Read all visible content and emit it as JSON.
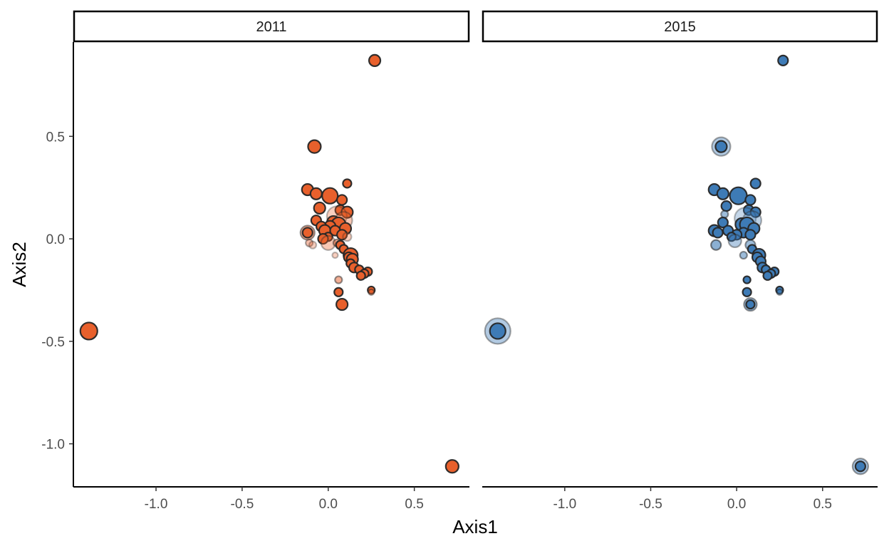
{
  "chart_data": {
    "type": "scatter",
    "xlabel": "Axis1",
    "ylabel": "Axis2",
    "xlim": [
      -1.48,
      0.82
    ],
    "ylim": [
      -1.21,
      0.96
    ],
    "x_ticks": [
      -1.0,
      -0.5,
      0.0,
      0.5
    ],
    "y_ticks": [
      -1.0,
      -0.5,
      0.0,
      0.5
    ],
    "x_tick_labels": [
      "-1.0",
      "-0.5",
      "0.0",
      "0.5"
    ],
    "y_tick_labels": [
      "-1.0",
      "-0.5",
      "0.0",
      "0.5"
    ],
    "grid": false,
    "legend": "none",
    "facets": [
      {
        "label": "2011",
        "fill_color": "#e8602c",
        "points": [
          {
            "x": 0.27,
            "y": 0.87,
            "size": 8,
            "alpha": 1.0
          },
          {
            "x": -0.08,
            "y": 0.45,
            "size": 9,
            "alpha": 1.0
          },
          {
            "x": 0.11,
            "y": 0.27,
            "size": 6,
            "alpha": 1.0
          },
          {
            "x": -0.12,
            "y": 0.24,
            "size": 8,
            "alpha": 1.0
          },
          {
            "x": -0.07,
            "y": 0.22,
            "size": 8,
            "alpha": 1.0
          },
          {
            "x": 0.01,
            "y": 0.21,
            "size": 11,
            "alpha": 1.0
          },
          {
            "x": 0.08,
            "y": 0.19,
            "size": 7,
            "alpha": 1.0
          },
          {
            "x": -0.05,
            "y": 0.15,
            "size": 8,
            "alpha": 1.0
          },
          {
            "x": 0.07,
            "y": 0.14,
            "size": 7,
            "alpha": 1.0
          },
          {
            "x": 0.11,
            "y": 0.13,
            "size": 8,
            "alpha": 1.0
          },
          {
            "x": 0.05,
            "y": 0.11,
            "size": 14,
            "alpha": 0.3
          },
          {
            "x": 0.09,
            "y": 0.09,
            "size": 12,
            "alpha": 0.35
          },
          {
            "x": -0.07,
            "y": 0.09,
            "size": 7,
            "alpha": 1.0
          },
          {
            "x": 0.03,
            "y": 0.08,
            "size": 9,
            "alpha": 1.0
          },
          {
            "x": 0.06,
            "y": 0.07,
            "size": 10,
            "alpha": 1.0
          },
          {
            "x": 0.01,
            "y": 0.06,
            "size": 8,
            "alpha": 1.0
          },
          {
            "x": -0.04,
            "y": 0.06,
            "size": 7,
            "alpha": 1.0
          },
          {
            "x": 0.1,
            "y": 0.05,
            "size": 8,
            "alpha": 1.0
          },
          {
            "x": -0.02,
            "y": 0.04,
            "size": 8,
            "alpha": 1.0
          },
          {
            "x": 0.04,
            "y": 0.04,
            "size": 7,
            "alpha": 1.0
          },
          {
            "x": -0.12,
            "y": 0.03,
            "size": 10,
            "alpha": 0.5
          },
          {
            "x": -0.12,
            "y": 0.03,
            "size": 7,
            "alpha": 1.0
          },
          {
            "x": 0.08,
            "y": 0.02,
            "size": 7,
            "alpha": 1.0
          },
          {
            "x": 0.0,
            "y": 0.01,
            "size": 6,
            "alpha": 1.0
          },
          {
            "x": 0.11,
            "y": 0.01,
            "size": 6,
            "alpha": 0.3
          },
          {
            "x": -0.03,
            "y": 0.0,
            "size": 7,
            "alpha": 1.0
          },
          {
            "x": 0.0,
            "y": -0.02,
            "size": 10,
            "alpha": 0.35
          },
          {
            "x": -0.11,
            "y": -0.02,
            "size": 5,
            "alpha": 0.4
          },
          {
            "x": 0.05,
            "y": -0.02,
            "size": 5,
            "alpha": 0.5
          },
          {
            "x": -0.09,
            "y": -0.03,
            "size": 5,
            "alpha": 0.3
          },
          {
            "x": 0.07,
            "y": -0.03,
            "size": 6,
            "alpha": 1.0
          },
          {
            "x": 0.09,
            "y": -0.05,
            "size": 6,
            "alpha": 1.0
          },
          {
            "x": 0.04,
            "y": -0.08,
            "size": 4,
            "alpha": 0.3
          },
          {
            "x": 0.13,
            "y": -0.08,
            "size": 10,
            "alpha": 1.0
          },
          {
            "x": 0.12,
            "y": -0.09,
            "size": 7,
            "alpha": 1.0
          },
          {
            "x": 0.14,
            "y": -0.1,
            "size": 8,
            "alpha": 1.0
          },
          {
            "x": 0.13,
            "y": -0.12,
            "size": 6,
            "alpha": 1.0
          },
          {
            "x": 0.15,
            "y": -0.14,
            "size": 7,
            "alpha": 1.0
          },
          {
            "x": 0.18,
            "y": -0.15,
            "size": 6,
            "alpha": 1.0
          },
          {
            "x": 0.23,
            "y": -0.16,
            "size": 6,
            "alpha": 1.0
          },
          {
            "x": 0.21,
            "y": -0.17,
            "size": 6,
            "alpha": 1.0
          },
          {
            "x": 0.19,
            "y": -0.18,
            "size": 6,
            "alpha": 1.0
          },
          {
            "x": 0.06,
            "y": -0.2,
            "size": 5,
            "alpha": 0.5
          },
          {
            "x": 0.25,
            "y": -0.25,
            "size": 5,
            "alpha": 1.0
          },
          {
            "x": 0.06,
            "y": -0.26,
            "size": 6,
            "alpha": 1.0
          },
          {
            "x": 0.25,
            "y": -0.26,
            "size": 4,
            "alpha": 0.5
          },
          {
            "x": 0.08,
            "y": -0.32,
            "size": 8,
            "alpha": 1.0
          },
          {
            "x": -1.39,
            "y": -0.45,
            "size": 12,
            "alpha": 1.0
          },
          {
            "x": 0.72,
            "y": -1.11,
            "size": 9,
            "alpha": 1.0
          }
        ]
      },
      {
        "label": "2015",
        "fill_color": "#3e7bb6",
        "points": [
          {
            "x": 0.27,
            "y": 0.87,
            "size": 7,
            "alpha": 1.0
          },
          {
            "x": -0.09,
            "y": 0.45,
            "size": 13,
            "alpha": 0.4
          },
          {
            "x": -0.09,
            "y": 0.45,
            "size": 8,
            "alpha": 1.0
          },
          {
            "x": 0.11,
            "y": 0.27,
            "size": 7,
            "alpha": 1.0
          },
          {
            "x": -0.13,
            "y": 0.24,
            "size": 8,
            "alpha": 1.0
          },
          {
            "x": -0.08,
            "y": 0.22,
            "size": 8,
            "alpha": 1.0
          },
          {
            "x": 0.01,
            "y": 0.21,
            "size": 12,
            "alpha": 1.0
          },
          {
            "x": 0.08,
            "y": 0.19,
            "size": 7,
            "alpha": 1.0
          },
          {
            "x": -0.06,
            "y": 0.16,
            "size": 7,
            "alpha": 1.0
          },
          {
            "x": 0.07,
            "y": 0.14,
            "size": 7,
            "alpha": 1.0
          },
          {
            "x": 0.11,
            "y": 0.13,
            "size": 7,
            "alpha": 1.0
          },
          {
            "x": -0.07,
            "y": 0.12,
            "size": 5,
            "alpha": 0.5
          },
          {
            "x": 0.05,
            "y": 0.1,
            "size": 15,
            "alpha": 0.3
          },
          {
            "x": 0.09,
            "y": 0.09,
            "size": 13,
            "alpha": 0.35
          },
          {
            "x": -0.08,
            "y": 0.08,
            "size": 7,
            "alpha": 1.0
          },
          {
            "x": 0.03,
            "y": 0.07,
            "size": 9,
            "alpha": 1.0
          },
          {
            "x": 0.06,
            "y": 0.07,
            "size": 10,
            "alpha": 1.0
          },
          {
            "x": 0.1,
            "y": 0.05,
            "size": 8,
            "alpha": 1.0
          },
          {
            "x": -0.05,
            "y": 0.04,
            "size": 7,
            "alpha": 1.0
          },
          {
            "x": 0.04,
            "y": 0.03,
            "size": 7,
            "alpha": 1.0
          },
          {
            "x": -0.13,
            "y": 0.04,
            "size": 8,
            "alpha": 1.0
          },
          {
            "x": -0.11,
            "y": 0.03,
            "size": 7,
            "alpha": 1.0
          },
          {
            "x": 0.08,
            "y": 0.02,
            "size": 7,
            "alpha": 1.0
          },
          {
            "x": 0.0,
            "y": 0.02,
            "size": 7,
            "alpha": 1.0
          },
          {
            "x": -0.03,
            "y": 0.01,
            "size": 6,
            "alpha": 1.0
          },
          {
            "x": -0.01,
            "y": -0.01,
            "size": 9,
            "alpha": 0.4
          },
          {
            "x": -0.12,
            "y": -0.03,
            "size": 7,
            "alpha": 0.6
          },
          {
            "x": 0.08,
            "y": -0.03,
            "size": 7,
            "alpha": 0.5
          },
          {
            "x": 0.09,
            "y": -0.05,
            "size": 6,
            "alpha": 1.0
          },
          {
            "x": 0.04,
            "y": -0.08,
            "size": 5,
            "alpha": 0.5
          },
          {
            "x": 0.13,
            "y": -0.08,
            "size": 9,
            "alpha": 1.0
          },
          {
            "x": 0.12,
            "y": -0.09,
            "size": 7,
            "alpha": 1.0
          },
          {
            "x": 0.14,
            "y": -0.11,
            "size": 7,
            "alpha": 1.0
          },
          {
            "x": 0.15,
            "y": -0.14,
            "size": 7,
            "alpha": 1.0
          },
          {
            "x": 0.17,
            "y": -0.15,
            "size": 6,
            "alpha": 1.0
          },
          {
            "x": 0.22,
            "y": -0.16,
            "size": 6,
            "alpha": 1.0
          },
          {
            "x": 0.2,
            "y": -0.17,
            "size": 6,
            "alpha": 1.0
          },
          {
            "x": 0.18,
            "y": -0.18,
            "size": 6,
            "alpha": 1.0
          },
          {
            "x": 0.06,
            "y": -0.2,
            "size": 5,
            "alpha": 1.0
          },
          {
            "x": 0.25,
            "y": -0.25,
            "size": 5,
            "alpha": 1.0
          },
          {
            "x": 0.06,
            "y": -0.26,
            "size": 6,
            "alpha": 1.0
          },
          {
            "x": 0.25,
            "y": -0.26,
            "size": 4,
            "alpha": 0.5
          },
          {
            "x": 0.08,
            "y": -0.32,
            "size": 9,
            "alpha": 0.5
          },
          {
            "x": 0.08,
            "y": -0.32,
            "size": 6,
            "alpha": 1.0
          },
          {
            "x": -1.39,
            "y": -0.45,
            "size": 18,
            "alpha": 0.4
          },
          {
            "x": -1.39,
            "y": -0.45,
            "size": 11,
            "alpha": 1.0
          },
          {
            "x": 0.72,
            "y": -1.11,
            "size": 11,
            "alpha": 0.45
          },
          {
            "x": 0.72,
            "y": -1.11,
            "size": 7,
            "alpha": 1.0
          }
        ]
      }
    ]
  }
}
